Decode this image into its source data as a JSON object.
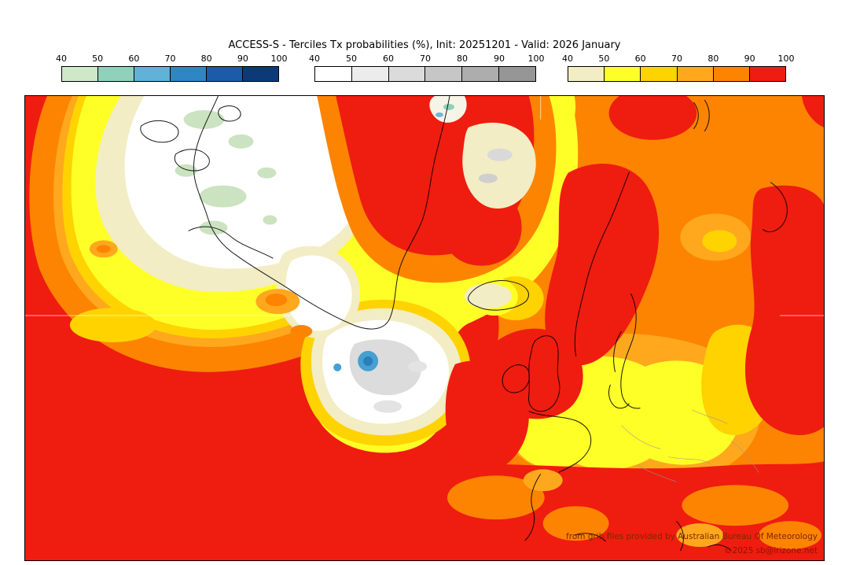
{
  "title": "ACCESS-S - Terciles Tx probabilities (%), Init: 20251201 - Valid: 2026 January",
  "colorbars": [
    {
      "name": "below-normal",
      "ticks": [
        "40",
        "50",
        "60",
        "70",
        "80",
        "90",
        "100"
      ],
      "colors": [
        "#cfe8c8",
        "#8fd1bb",
        "#5fb2d8",
        "#2f86c4",
        "#1b5ca8",
        "#0c3a78"
      ]
    },
    {
      "name": "near-normal",
      "ticks": [
        "40",
        "50",
        "60",
        "70",
        "80",
        "90",
        "100"
      ],
      "colors": [
        "#ffffff",
        "#ececec",
        "#dbdbdb",
        "#c6c6c6",
        "#adadad",
        "#969696"
      ]
    },
    {
      "name": "above-normal",
      "ticks": [
        "40",
        "50",
        "60",
        "70",
        "80",
        "90",
        "100"
      ],
      "colors": [
        "#f2edc4",
        "#ffff28",
        "#ffd300",
        "#ffa81e",
        "#fd8400",
        "#ef1c10"
      ]
    }
  ],
  "attribution": {
    "line1": "from grib files provided by Australian Bureau Of Meteorology",
    "line2": "©2025 sb@irizone.net"
  },
  "map_palette": {
    "red": "#ef1c10",
    "dark_orange": "#fd8400",
    "amber": "#ffa81e",
    "gold": "#ffd300",
    "yellow": "#ffff28",
    "cream": "#f2edc4",
    "white": "#ffffff",
    "light_green": "#cbe3c1",
    "teal": "#8fd1bb",
    "blue": "#46a0d2",
    "gray": "#dcdcdc"
  }
}
